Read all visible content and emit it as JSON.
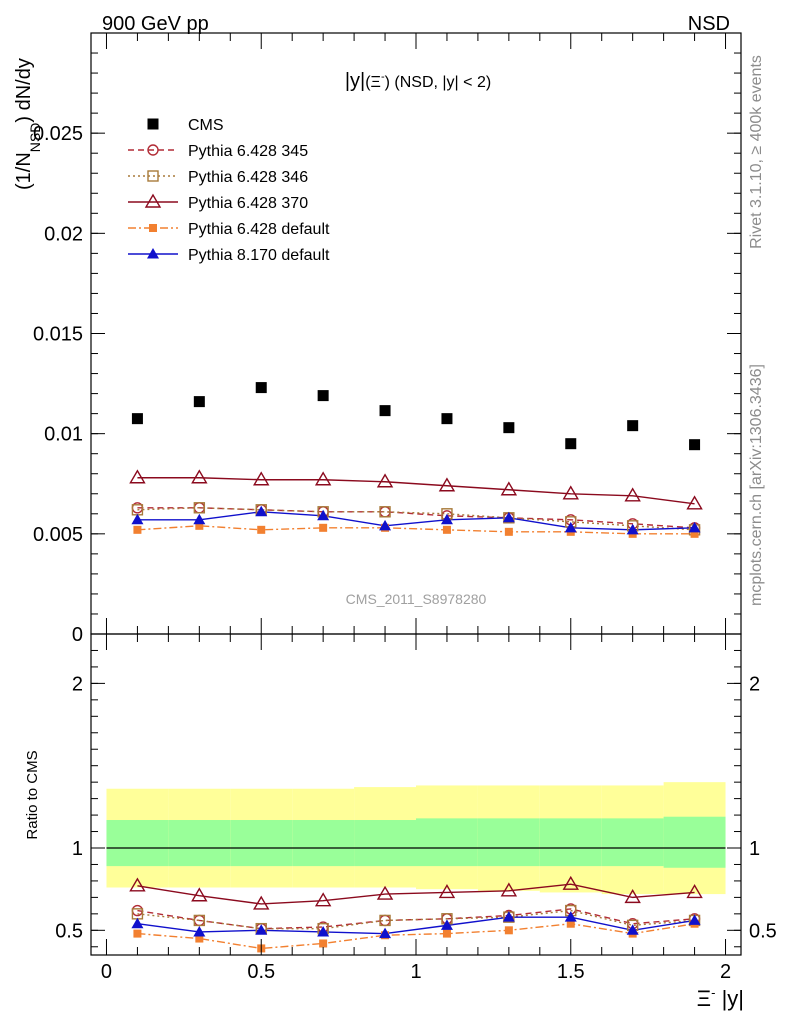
{
  "header": {
    "left": "900 GeV pp",
    "right": "NSD",
    "ylabel_main": "(1/N",
    "ylabel_sub": "NSD",
    "ylabel_tail": ") dN/dy",
    "ylabel_ratio": "Ratio to CMS",
    "xlabel_xi": "Ξ",
    "xlabel_sup": "-",
    "xlabel_tail": " |y|",
    "side_rivet": "Rivet 3.1.10, ≥ 400k events",
    "side_mcplots": "mcplots.cern.ch [arXiv:1306.3436]",
    "analysis_id": "CMS_2011_S8978280"
  },
  "chart_data": [
    {
      "type": "scatter",
      "title": "|y|(Ξ⁻) (NSD, |y| < 2)",
      "title_parts": {
        "a": "|y|",
        "b": "(Ξ",
        "sup": "-",
        "c": ")",
        "d": " (NSD, |y| < 2)"
      },
      "xlabel": "Ξ⁻ |y|",
      "ylabel": "(1/N_NSD) dN/dy",
      "xlim": [
        -0.05,
        2.05
      ],
      "ylim": [
        0,
        0.03
      ],
      "yticks_labels": [
        "0",
        "0.005",
        "0.01",
        "0.015",
        "0.02",
        "0.025"
      ],
      "yticks_values": [
        0,
        0.005,
        0.01,
        0.015,
        0.02,
        0.025
      ],
      "legend_position": "top-left",
      "x": [
        0.1,
        0.3,
        0.5,
        0.7,
        0.9,
        1.1,
        1.3,
        1.5,
        1.7,
        1.9
      ],
      "series": [
        {
          "name": "CMS",
          "color": "#000000",
          "marker": "square-filled",
          "line": "none",
          "values": [
            0.01075,
            0.0116,
            0.0123,
            0.0119,
            0.01115,
            0.01075,
            0.0103,
            0.0095,
            0.0104,
            0.00945
          ]
        },
        {
          "name": "Pythia 6.428 345",
          "color": "#b22c36",
          "marker": "circle-open",
          "line": "dashed",
          "values": [
            0.0063,
            0.0063,
            0.0062,
            0.0061,
            0.0061,
            0.0059,
            0.0058,
            0.0057,
            0.0055,
            0.0053
          ]
        },
        {
          "name": "Pythia 6.428 346",
          "color": "#a87a3a",
          "marker": "square-open",
          "line": "dotted",
          "values": [
            0.0062,
            0.0063,
            0.0062,
            0.0061,
            0.0061,
            0.006,
            0.0058,
            0.0056,
            0.0054,
            0.0052
          ]
        },
        {
          "name": "Pythia 6.428 370",
          "color": "#8b0a1e",
          "marker": "triangle-open",
          "line": "solid",
          "values": [
            0.0078,
            0.0078,
            0.0077,
            0.0077,
            0.0076,
            0.0074,
            0.0072,
            0.007,
            0.0069,
            0.0065
          ]
        },
        {
          "name": "Pythia 6.428 default",
          "color": "#f28030",
          "marker": "square-small",
          "line": "dashdot",
          "values": [
            0.0052,
            0.0054,
            0.0052,
            0.0053,
            0.0053,
            0.0052,
            0.0051,
            0.0051,
            0.005,
            0.005
          ]
        },
        {
          "name": "Pythia 8.170 default",
          "color": "#1010cc",
          "marker": "triangle-filled",
          "line": "solid",
          "values": [
            0.0057,
            0.0057,
            0.0061,
            0.0059,
            0.0054,
            0.0057,
            0.0058,
            0.0053,
            0.0052,
            0.0053
          ]
        }
      ]
    },
    {
      "type": "line",
      "ylabel": "Ratio to CMS",
      "xlabel": "Ξ⁻ |y|",
      "xlim": [
        -0.05,
        2.05
      ],
      "ylim": [
        0.35,
        2.3
      ],
      "yticks_labels": [
        "0.5",
        "1",
        "2"
      ],
      "yticks_values": [
        0.5,
        1,
        2
      ],
      "xticks_labels": [
        "0",
        "0.5",
        "1",
        "1.5",
        "2"
      ],
      "xticks_values": [
        0,
        0.5,
        1,
        1.5,
        2
      ],
      "x": [
        0.1,
        0.3,
        0.5,
        0.7,
        0.9,
        1.1,
        1.3,
        1.5,
        1.7,
        1.9
      ],
      "band_edges": [
        0,
        0.2,
        0.4,
        0.6,
        0.8,
        1.0,
        1.2,
        1.4,
        1.6,
        1.8,
        2.0
      ],
      "band_outer": {
        "color": "#ffff99",
        "low": [
          0.76,
          0.76,
          0.76,
          0.76,
          0.76,
          0.75,
          0.74,
          0.73,
          0.72,
          0.72
        ],
        "high": [
          1.36,
          1.36,
          1.36,
          1.36,
          1.37,
          1.38,
          1.38,
          1.38,
          1.38,
          1.4
        ]
      },
      "band_inner": {
        "color": "#99ff99",
        "low": [
          0.89,
          0.89,
          0.89,
          0.89,
          0.89,
          0.89,
          0.89,
          0.89,
          0.89,
          0.88
        ],
        "high": [
          1.17,
          1.17,
          1.17,
          1.17,
          1.17,
          1.18,
          1.18,
          1.18,
          1.18,
          1.19
        ]
      },
      "series": [
        {
          "name": "Pythia 6.428 345",
          "color": "#b22c36",
          "marker": "circle-open",
          "line": "dashed",
          "values": [
            0.62,
            0.56,
            0.51,
            0.52,
            0.56,
            0.57,
            0.59,
            0.63,
            0.54,
            0.57
          ]
        },
        {
          "name": "Pythia 6.428 346",
          "color": "#a87a3a",
          "marker": "square-open",
          "line": "dotted",
          "values": [
            0.6,
            0.56,
            0.51,
            0.51,
            0.56,
            0.57,
            0.58,
            0.62,
            0.53,
            0.56
          ]
        },
        {
          "name": "Pythia 6.428 370",
          "color": "#8b0a1e",
          "marker": "triangle-open",
          "line": "solid",
          "values": [
            0.77,
            0.71,
            0.66,
            0.68,
            0.72,
            0.73,
            0.74,
            0.78,
            0.7,
            0.73
          ]
        },
        {
          "name": "Pythia 6.428 default",
          "color": "#f28030",
          "marker": "square-small",
          "line": "dashdot",
          "values": [
            0.48,
            0.45,
            0.39,
            0.42,
            0.47,
            0.48,
            0.5,
            0.54,
            0.48,
            0.54
          ]
        },
        {
          "name": "Pythia 8.170 default",
          "color": "#1010cc",
          "marker": "triangle-filled",
          "line": "solid",
          "values": [
            0.54,
            0.49,
            0.5,
            0.49,
            0.48,
            0.53,
            0.58,
            0.58,
            0.5,
            0.56
          ]
        }
      ]
    }
  ]
}
